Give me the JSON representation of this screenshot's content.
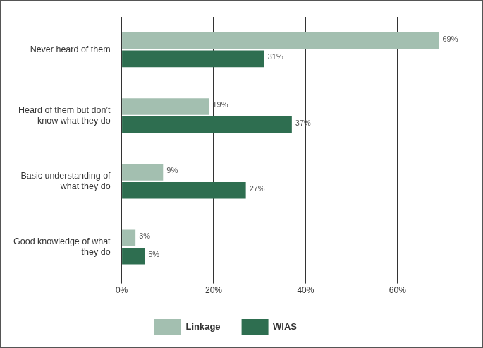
{
  "chart_data": {
    "type": "bar",
    "orientation": "horizontal",
    "categories": [
      "Never heard of them",
      "Heard of them but don’t know what they do",
      "Basic understanding of what they do",
      "Good knowledge of what they do"
    ],
    "series": [
      {
        "name": "Linkage",
        "color": "#a3bfb0",
        "values": [
          69,
          19,
          9,
          3
        ],
        "value_labels": [
          "69%",
          "19%",
          "9%",
          "3%"
        ]
      },
      {
        "name": "WIAS",
        "color": "#2e6e50",
        "values": [
          31,
          37,
          27,
          5
        ],
        "value_labels": [
          "31%",
          "37%",
          "27%",
          "5%"
        ]
      }
    ],
    "xlim": [
      0,
      70
    ],
    "xticks": [
      {
        "value": 0,
        "label": "0%"
      },
      {
        "value": 20,
        "label": "20%"
      },
      {
        "value": 40,
        "label": "40%"
      },
      {
        "value": 60,
        "label": "60%"
      }
    ],
    "grid": true,
    "legend": "bottom",
    "data_labels": true
  }
}
